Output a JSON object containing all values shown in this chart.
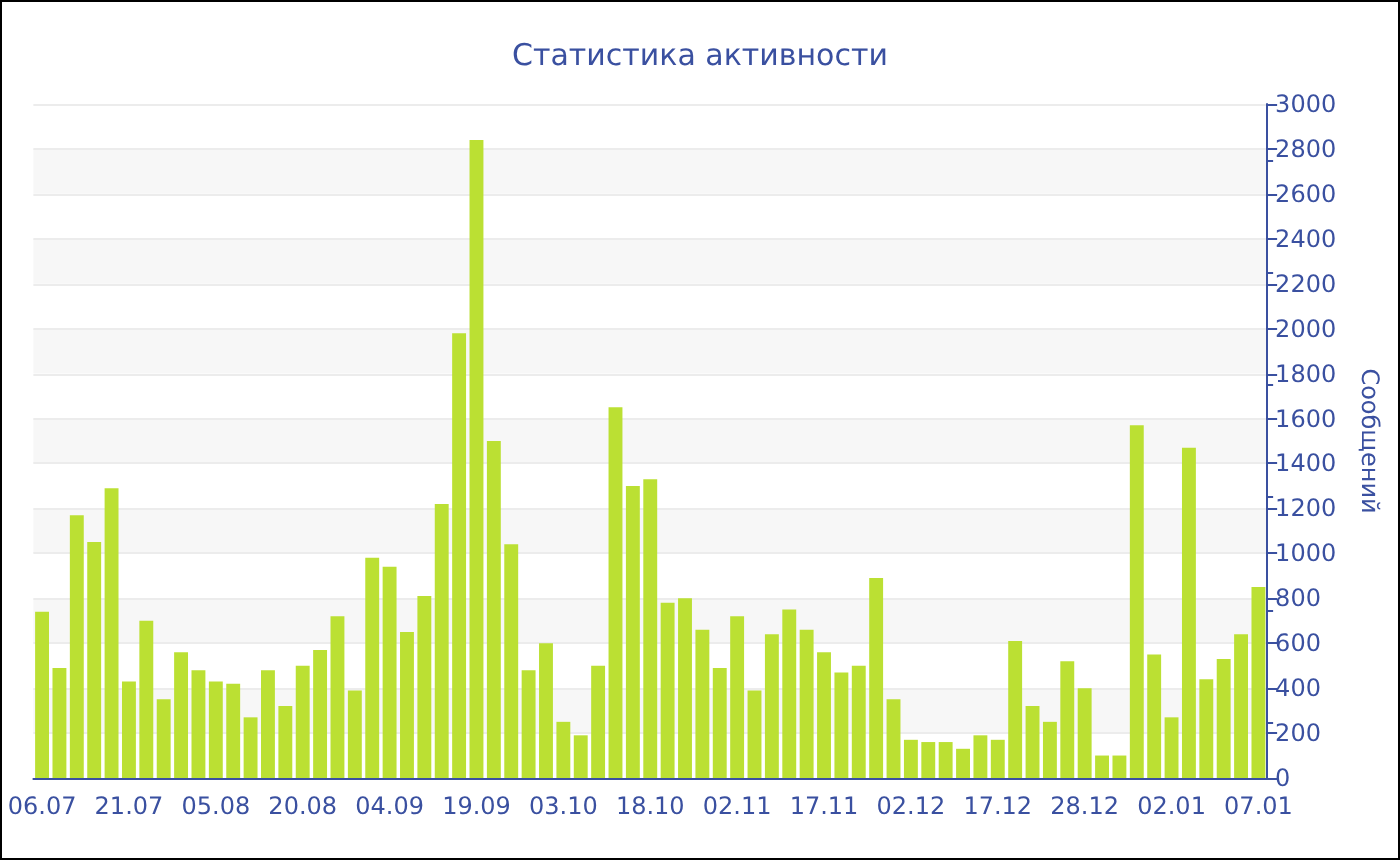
{
  "chart_data": {
    "type": "bar",
    "title": "Статистика активности",
    "ylabel": "Сообщений",
    "categories": [
      "06.07",
      null,
      null,
      null,
      null,
      "21.07",
      null,
      null,
      null,
      null,
      "05.08",
      null,
      null,
      null,
      null,
      "20.08",
      null,
      null,
      null,
      null,
      "04.09",
      null,
      null,
      null,
      null,
      "19.09",
      null,
      null,
      null,
      null,
      "03.10",
      null,
      null,
      null,
      null,
      "18.10",
      null,
      null,
      null,
      null,
      "02.11",
      null,
      null,
      null,
      null,
      "17.11",
      null,
      null,
      null,
      null,
      "02.12",
      null,
      null,
      null,
      null,
      "17.12",
      null,
      null,
      null,
      null,
      "28.12",
      null,
      null,
      null,
      null,
      "02.01",
      null,
      null,
      null,
      null,
      "07.01"
    ],
    "values": [
      740,
      490,
      1170,
      1050,
      1290,
      430,
      700,
      350,
      560,
      480,
      430,
      420,
      270,
      480,
      320,
      500,
      570,
      720,
      390,
      980,
      940,
      650,
      810,
      1220,
      1980,
      2840,
      1500,
      1040,
      480,
      600,
      250,
      190,
      500,
      1650,
      1300,
      1330,
      780,
      800,
      660,
      490,
      720,
      390,
      640,
      750,
      660,
      560,
      470,
      500,
      890,
      350,
      170,
      160,
      160,
      130,
      190,
      170,
      610,
      320,
      250,
      520,
      400,
      100,
      100,
      1570,
      550,
      270,
      1470,
      440,
      530,
      640,
      850
    ],
    "color": "#bbe033",
    "ylim": [
      0,
      3000
    ],
    "yticks": [
      0,
      200,
      400,
      600,
      800,
      1000,
      1200,
      1400,
      1600,
      1800,
      2000,
      2200,
      2400,
      2600,
      2800,
      3000
    ],
    "grid": "y"
  }
}
